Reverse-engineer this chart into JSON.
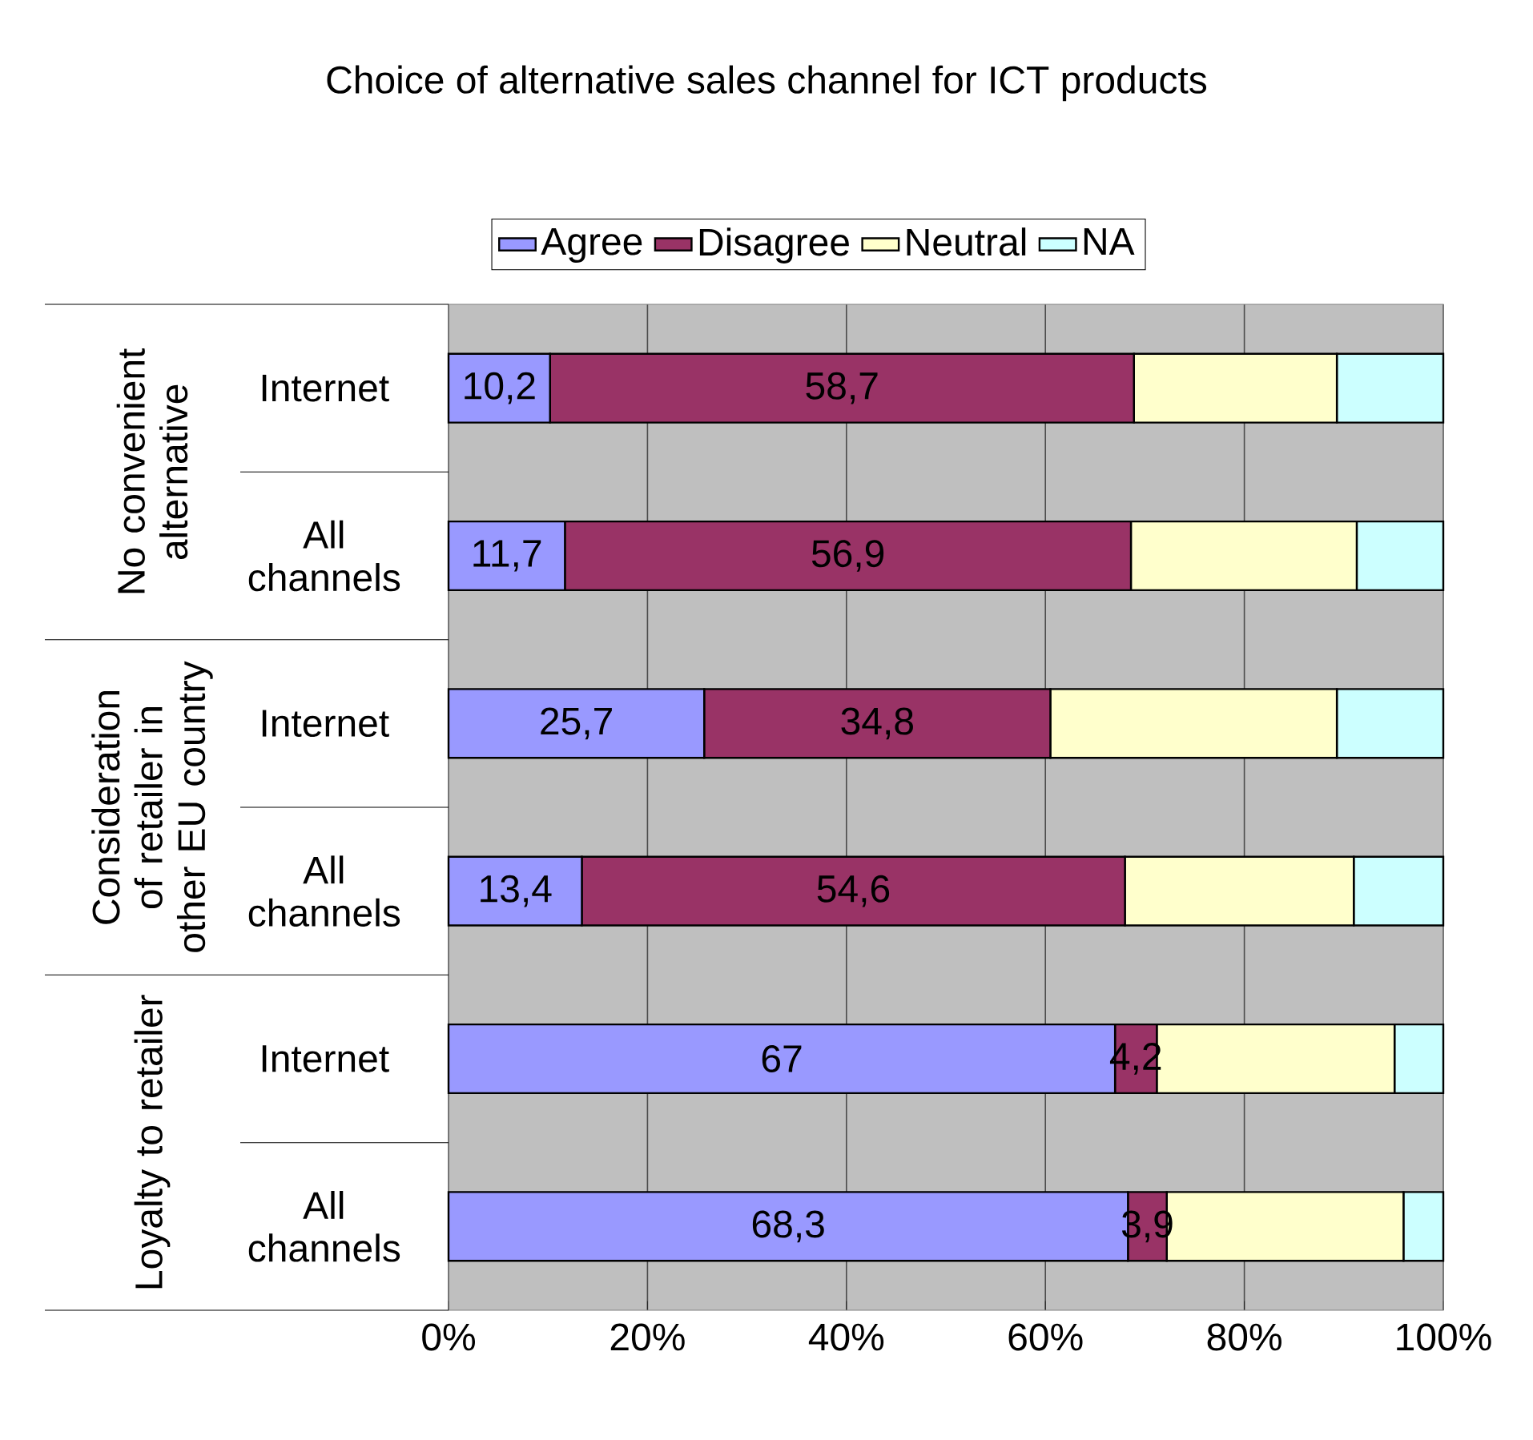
{
  "chart_data": {
    "type": "bar",
    "orientation": "horizontal",
    "stacked": true,
    "title": "Choice of alternative sales channel for ICT products",
    "categories": [
      "Internet",
      "All channels",
      "Internet",
      "All channels",
      "Internet",
      "All channels"
    ],
    "series": [
      {
        "name": "Agree",
        "color": "#9999ff",
        "values": [
          10.2,
          11.7,
          25.7,
          13.4,
          67,
          68.3
        ],
        "value_labels": [
          "10,2",
          "11,7",
          "25,7",
          "13,4",
          "67",
          "68,3"
        ]
      },
      {
        "name": "Disagree",
        "color": "#993366",
        "values": [
          58.7,
          56.9,
          34.8,
          54.6,
          4.2,
          3.9
        ],
        "value_labels": [
          "58,7",
          "56,9",
          "34,8",
          "54,6",
          "4,2",
          "3,9"
        ]
      },
      {
        "name": "Neutral",
        "color": "#ffffcc",
        "values": [
          20.4,
          22.7,
          28.8,
          23,
          23.9,
          23.8
        ]
      },
      {
        "name": "NA",
        "color": "#ccffff",
        "values": [
          10.7,
          8.7,
          10.7,
          9,
          4.9,
          4
        ]
      }
    ],
    "annotations": [
      "No convenient alternative",
      "Consideration of retailer in other EU country",
      "Loyalty to retailer"
    ],
    "xlim": [
      0,
      100
    ],
    "xticks": [
      {
        "value": 0,
        "label": "0%"
      },
      {
        "value": 20,
        "label": "20%"
      },
      {
        "value": 40,
        "label": "40%"
      },
      {
        "value": 60,
        "label": "60%"
      },
      {
        "value": 80,
        "label": "80%"
      },
      {
        "value": 100,
        "label": "100%"
      }
    ],
    "grid": "x",
    "legend": "top"
  }
}
